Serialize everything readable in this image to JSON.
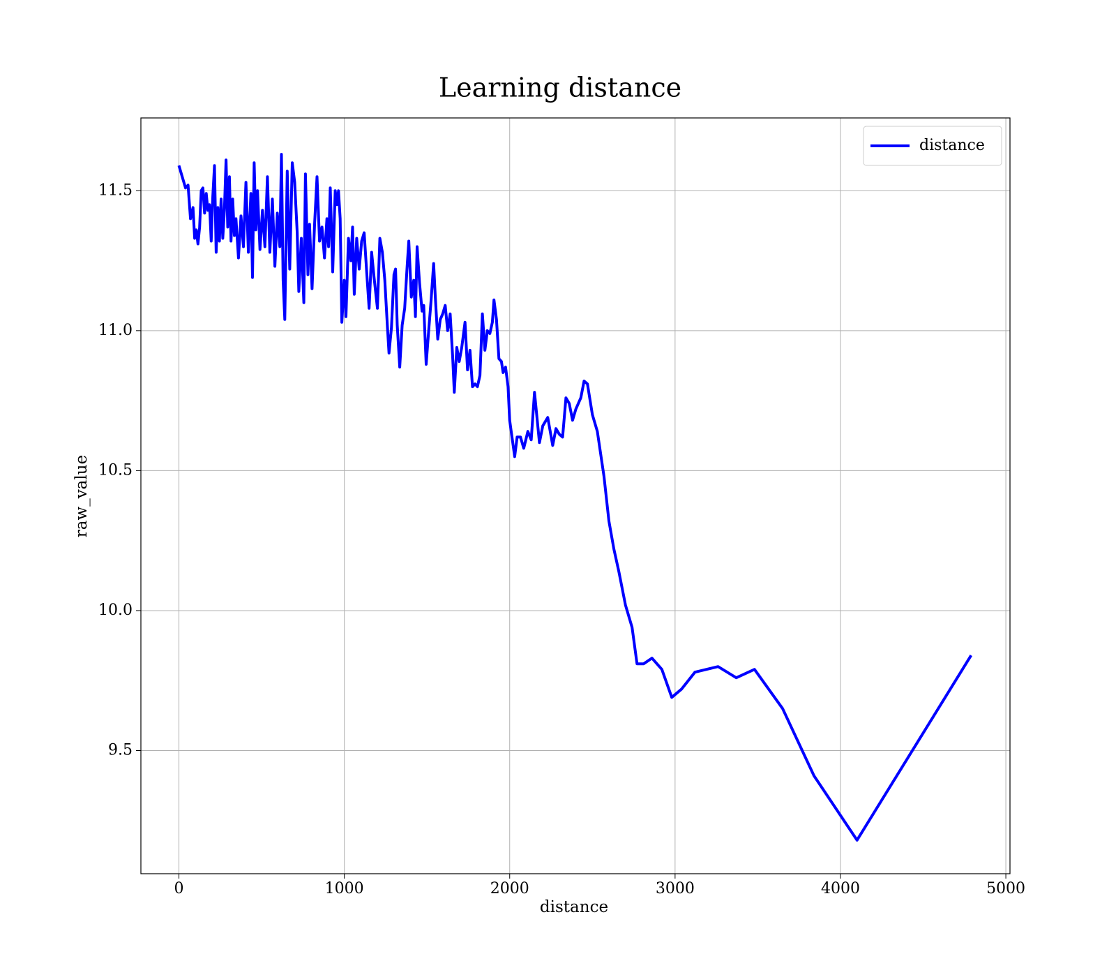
{
  "chart_data": {
    "type": "line",
    "title": "Learning distance",
    "x_label": "distance",
    "y_label": "raw_value",
    "x": [
      0,
      40,
      55,
      70,
      85,
      95,
      105,
      115,
      125,
      135,
      145,
      155,
      165,
      175,
      185,
      195,
      205,
      215,
      225,
      235,
      245,
      255,
      265,
      275,
      285,
      295,
      305,
      315,
      325,
      335,
      345,
      360,
      375,
      390,
      405,
      420,
      435,
      445,
      455,
      465,
      475,
      490,
      505,
      520,
      535,
      550,
      565,
      580,
      595,
      610,
      620,
      630,
      640,
      655,
      670,
      685,
      700,
      715,
      725,
      740,
      755,
      765,
      780,
      790,
      805,
      820,
      835,
      850,
      865,
      880,
      895,
      905,
      915,
      930,
      945,
      955,
      965,
      975,
      985,
      1000,
      1010,
      1025,
      1040,
      1050,
      1060,
      1075,
      1090,
      1105,
      1120,
      1135,
      1150,
      1165,
      1180,
      1200,
      1215,
      1230,
      1245,
      1260,
      1270,
      1285,
      1300,
      1310,
      1320,
      1335,
      1350,
      1365,
      1380,
      1390,
      1405,
      1420,
      1430,
      1440,
      1455,
      1470,
      1480,
      1495,
      1510,
      1525,
      1540,
      1550,
      1565,
      1580,
      1595,
      1610,
      1625,
      1640,
      1655,
      1665,
      1680,
      1695,
      1710,
      1730,
      1745,
      1760,
      1775,
      1790,
      1805,
      1820,
      1835,
      1850,
      1865,
      1880,
      1895,
      1905,
      1920,
      1935,
      1950,
      1960,
      1975,
      1990,
      2000,
      2030,
      2045,
      2065,
      2085,
      2110,
      2130,
      2150,
      2180,
      2200,
      2230,
      2260,
      2280,
      2300,
      2320,
      2340,
      2360,
      2380,
      2400,
      2430,
      2450,
      2470,
      2500,
      2530,
      2570,
      2600,
      2630,
      2660,
      2700,
      2740,
      2770,
      2810,
      2860,
      2920,
      2980,
      3040,
      3120,
      3260,
      3370,
      3480,
      3650,
      3840,
      4100,
      4790
    ],
    "series": [
      {
        "name": "distance",
        "color": "#0000ff",
        "values": [
          11.59,
          11.51,
          11.52,
          11.4,
          11.44,
          11.33,
          11.36,
          11.31,
          11.37,
          11.5,
          11.51,
          11.42,
          11.49,
          11.43,
          11.45,
          11.32,
          11.48,
          11.59,
          11.28,
          11.44,
          11.32,
          11.47,
          11.33,
          11.43,
          11.61,
          11.37,
          11.55,
          11.32,
          11.47,
          11.34,
          11.4,
          11.26,
          11.41,
          11.3,
          11.53,
          11.28,
          11.49,
          11.19,
          11.6,
          11.36,
          11.5,
          11.29,
          11.43,
          11.3,
          11.55,
          11.28,
          11.47,
          11.23,
          11.42,
          11.3,
          11.63,
          11.18,
          11.04,
          11.57,
          11.22,
          11.6,
          11.53,
          11.35,
          11.14,
          11.33,
          11.1,
          11.56,
          11.2,
          11.38,
          11.15,
          11.38,
          11.55,
          11.32,
          11.37,
          11.26,
          11.4,
          11.3,
          11.51,
          11.21,
          11.5,
          11.45,
          11.5,
          11.4,
          11.03,
          11.18,
          11.05,
          11.33,
          11.25,
          11.37,
          11.13,
          11.33,
          11.22,
          11.32,
          11.35,
          11.21,
          11.08,
          11.28,
          11.19,
          11.08,
          11.33,
          11.28,
          11.18,
          11.02,
          10.92,
          11.01,
          11.2,
          11.22,
          11.02,
          10.87,
          11.02,
          11.08,
          11.23,
          11.32,
          11.12,
          11.18,
          11.05,
          11.3,
          11.17,
          11.07,
          11.09,
          10.88,
          11.0,
          11.11,
          11.24,
          11.12,
          10.97,
          11.04,
          11.06,
          11.09,
          11.0,
          11.06,
          10.91,
          10.78,
          10.94,
          10.89,
          10.94,
          11.03,
          10.86,
          10.93,
          10.8,
          10.81,
          10.8,
          10.84,
          11.06,
          10.93,
          11.0,
          10.99,
          11.03,
          11.11,
          11.04,
          10.9,
          10.89,
          10.85,
          10.87,
          10.8,
          10.68,
          10.55,
          10.62,
          10.62,
          10.58,
          10.64,
          10.61,
          10.78,
          10.6,
          10.66,
          10.69,
          10.59,
          10.65,
          10.63,
          10.62,
          10.76,
          10.74,
          10.68,
          10.72,
          10.76,
          10.82,
          10.81,
          10.7,
          10.64,
          10.48,
          10.32,
          10.22,
          10.14,
          10.02,
          9.94,
          9.81,
          9.81,
          9.83,
          9.79,
          9.69,
          9.72,
          9.78,
          9.8,
          9.76,
          9.79,
          9.65,
          9.41,
          9.18,
          9.84
        ]
      }
    ],
    "xlim": [
      -230,
      5025
    ],
    "ylim": [
      9.06,
      11.76
    ],
    "xticks": [
      0,
      1000,
      2000,
      3000,
      4000,
      5000
    ],
    "yticks": [
      9.5,
      {
        "value": 10,
        "label": "10.0"
      },
      10.5,
      {
        "value": 11,
        "label": "11.0"
      },
      11.5
    ],
    "grid": true,
    "legend": "upper right"
  }
}
